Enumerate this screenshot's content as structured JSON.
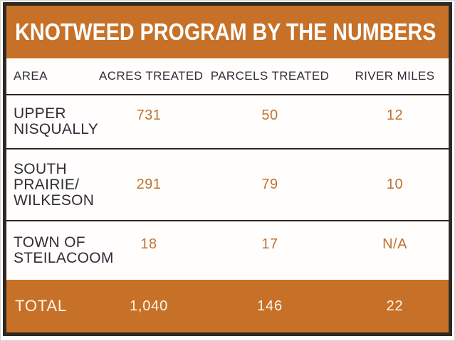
{
  "title": "KNOTWEED PROGRAM BY THE NUMBERS",
  "colors": {
    "orange": "#c77128",
    "value_orange": "#c1722f",
    "dark_border": "#2e2925",
    "text_dark": "#312d36",
    "white": "#ffffff"
  },
  "table": {
    "columns": [
      "AREA",
      "ACRES TREATED",
      "PARCELS TREATED",
      "RIVER MILES"
    ],
    "rows": [
      {
        "area_lines": [
          "UPPER",
          "NISQUALLY"
        ],
        "acres": "731",
        "parcels": "50",
        "river_miles": "12"
      },
      {
        "area_lines": [
          "SOUTH",
          "PRAIRIE/",
          "WILKESON"
        ],
        "acres": "291",
        "parcels": "79",
        "river_miles": "10"
      },
      {
        "area_lines": [
          "TOWN OF",
          "STEILACOOM"
        ],
        "acres": "18",
        "parcels": "17",
        "river_miles": "N/A"
      }
    ],
    "total": {
      "label": "TOTAL",
      "acres": "1,040",
      "parcels": "146",
      "river_miles": "22"
    }
  },
  "chart_data": {
    "type": "table",
    "title": "KNOTWEED PROGRAM BY THE NUMBERS",
    "columns": [
      "AREA",
      "ACRES TREATED",
      "PARCELS TREATED",
      "RIVER MILES"
    ],
    "rows": [
      [
        "UPPER NISQUALLY",
        731,
        50,
        12
      ],
      [
        "SOUTH PRAIRIE/WILKESON",
        291,
        79,
        10
      ],
      [
        "TOWN OF STEILACOOM",
        18,
        17,
        "N/A"
      ],
      [
        "TOTAL",
        1040,
        146,
        22
      ]
    ],
    "notes": "Data-row numeric values shown in orange; header and total rows on orange background with white text"
  }
}
